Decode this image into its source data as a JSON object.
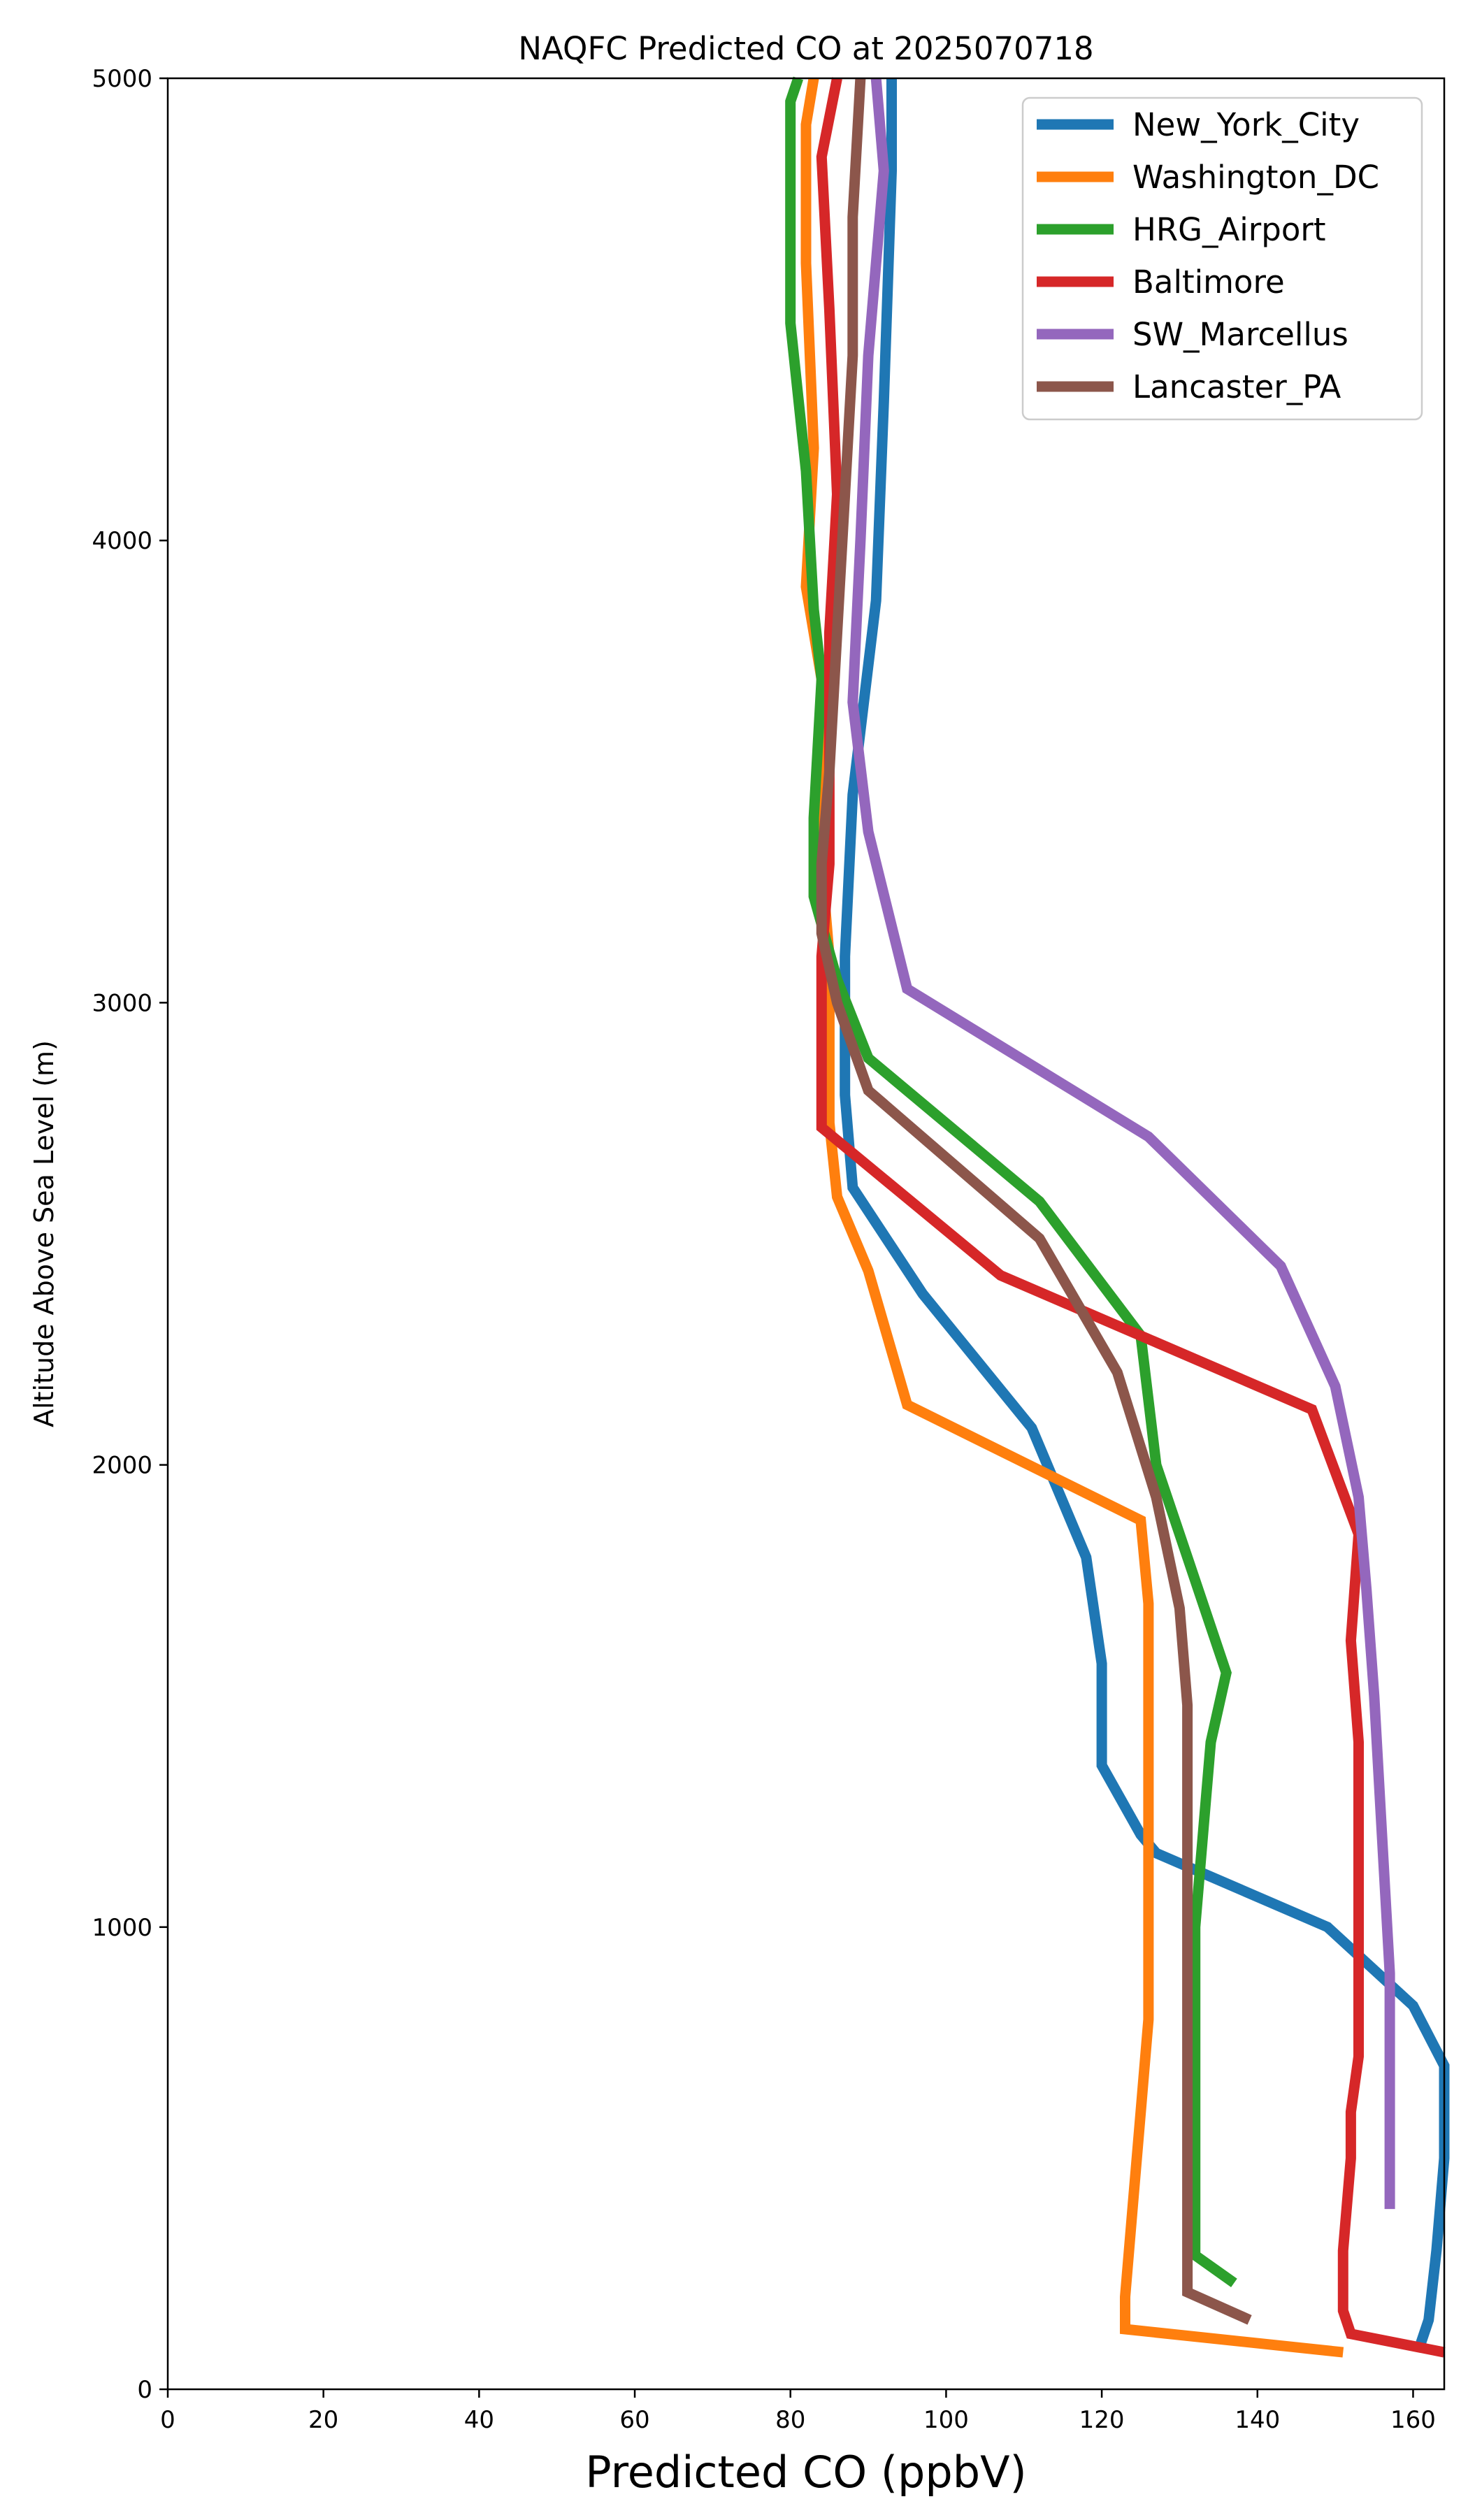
{
  "chart_data": {
    "type": "line",
    "title": "NAQFC Predicted CO at 2025070718",
    "xlabel": "Predicted CO (ppbV)",
    "ylabel": "Altitude Above Sea Level (m)",
    "xlim": [
      0,
      164
    ],
    "ylim": [
      0,
      5000
    ],
    "x_ticks": [
      "0",
      "20",
      "40",
      "60",
      "80",
      "100",
      "120",
      "140",
      "160"
    ],
    "y_ticks": [
      "0",
      "1000",
      "2000",
      "3000",
      "4000",
      "5000"
    ],
    "grid": false,
    "legend_position": "top-right",
    "series": [
      {
        "name": "New_York_City",
        "color": "#1f77b4",
        "points": [
          [
            161,
            100
          ],
          [
            162,
            150
          ],
          [
            163,
            300
          ],
          [
            164,
            500
          ],
          [
            164,
            700
          ],
          [
            160,
            830
          ],
          [
            149,
            1000
          ],
          [
            127,
            1160
          ],
          [
            125,
            1200
          ],
          [
            120,
            1350
          ],
          [
            120,
            1570
          ],
          [
            118,
            1800
          ],
          [
            111,
            2080
          ],
          [
            97,
            2370
          ],
          [
            88,
            2600
          ],
          [
            87,
            2800
          ],
          [
            87,
            3100
          ],
          [
            88,
            3450
          ],
          [
            91,
            3870
          ],
          [
            92,
            4300
          ],
          [
            93,
            4800
          ],
          [
            93,
            5000
          ]
        ]
      },
      {
        "name": "Washington_DC",
        "color": "#ff7f0e",
        "points": [
          [
            151,
            80
          ],
          [
            123,
            130
          ],
          [
            123,
            200
          ],
          [
            124,
            400
          ],
          [
            125,
            600
          ],
          [
            126,
            800
          ],
          [
            126,
            1000
          ],
          [
            126,
            1200
          ],
          [
            126,
            1500
          ],
          [
            126,
            1700
          ],
          [
            125,
            1880
          ],
          [
            95,
            2130
          ],
          [
            90,
            2420
          ],
          [
            86,
            2580
          ],
          [
            85,
            2740
          ],
          [
            85,
            2900
          ],
          [
            85,
            3100
          ],
          [
            84,
            3300
          ],
          [
            84,
            3700
          ],
          [
            82,
            3900
          ],
          [
            83,
            4200
          ],
          [
            82,
            4600
          ],
          [
            82,
            4900
          ],
          [
            83,
            5000
          ]
        ]
      },
      {
        "name": "HRG_Airport",
        "color": "#2ca02c",
        "points": [
          [
            137,
            230
          ],
          [
            132,
            290
          ],
          [
            132,
            500
          ],
          [
            132,
            700
          ],
          [
            132,
            1000
          ],
          [
            133,
            1200
          ],
          [
            134,
            1400
          ],
          [
            136,
            1550
          ],
          [
            131,
            1800
          ],
          [
            127,
            2000
          ],
          [
            125,
            2280
          ],
          [
            112,
            2570
          ],
          [
            90,
            2880
          ],
          [
            86,
            3050
          ],
          [
            83,
            3230
          ],
          [
            83,
            3400
          ],
          [
            84,
            3700
          ],
          [
            83,
            3850
          ],
          [
            82,
            4150
          ],
          [
            80,
            4470
          ],
          [
            80,
            4950
          ],
          [
            81,
            5000
          ]
        ]
      },
      {
        "name": "Baltimore",
        "color": "#d62728",
        "points": [
          [
            164,
            80
          ],
          [
            152,
            120
          ],
          [
            151,
            170
          ],
          [
            151,
            300
          ],
          [
            152,
            500
          ],
          [
            152,
            600
          ],
          [
            153,
            720
          ],
          [
            153,
            900
          ],
          [
            153,
            1200
          ],
          [
            153,
            1400
          ],
          [
            152,
            1620
          ],
          [
            153,
            1850
          ],
          [
            147,
            2120
          ],
          [
            107,
            2410
          ],
          [
            84,
            2730
          ],
          [
            84,
            2900
          ],
          [
            84,
            3100
          ],
          [
            85,
            3300
          ],
          [
            85,
            3500
          ],
          [
            85,
            3800
          ],
          [
            86,
            4100
          ],
          [
            85,
            4500
          ],
          [
            84,
            4830
          ],
          [
            86,
            5000
          ]
        ]
      },
      {
        "name": "SW_Marcellus",
        "color": "#9467bd",
        "points": [
          [
            157,
            390
          ],
          [
            157,
            650
          ],
          [
            157,
            900
          ],
          [
            156,
            1200
          ],
          [
            155,
            1500
          ],
          [
            154,
            1730
          ],
          [
            153,
            1930
          ],
          [
            150,
            2170
          ],
          [
            143,
            2430
          ],
          [
            126,
            2710
          ],
          [
            95,
            3030
          ],
          [
            90,
            3370
          ],
          [
            88,
            3650
          ],
          [
            89,
            4000
          ],
          [
            90,
            4400
          ],
          [
            91,
            4600
          ],
          [
            92,
            4800
          ],
          [
            91,
            5000
          ]
        ]
      },
      {
        "name": "Lancaster_PA",
        "color": "#8c564b",
        "points": [
          [
            139,
            150
          ],
          [
            131,
            210
          ],
          [
            131,
            500
          ],
          [
            131,
            800
          ],
          [
            131,
            1100
          ],
          [
            131,
            1300
          ],
          [
            131,
            1480
          ],
          [
            130,
            1690
          ],
          [
            127,
            1930
          ],
          [
            122,
            2200
          ],
          [
            112,
            2490
          ],
          [
            90,
            2810
          ],
          [
            86,
            3000
          ],
          [
            84,
            3150
          ],
          [
            84,
            3300
          ],
          [
            85,
            3500
          ],
          [
            86,
            3800
          ],
          [
            87,
            4100
          ],
          [
            88,
            4400
          ],
          [
            88,
            4700
          ],
          [
            89,
            5000
          ]
        ]
      }
    ]
  }
}
